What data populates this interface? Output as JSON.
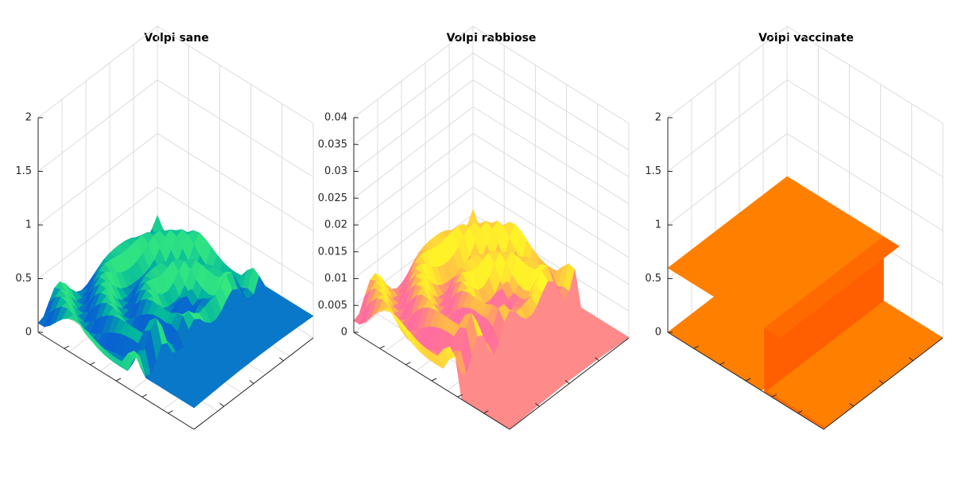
{
  "chart_data": [
    {
      "type": "surface3d",
      "title": "Volpi sane",
      "zlim": [
        0,
        2
      ],
      "zticks": [
        0,
        0.5,
        1,
        1.5,
        2
      ],
      "z_tick_labels": [
        "0",
        "0.5",
        "1",
        "1.5",
        "2"
      ],
      "grid": true,
      "colors": {
        "low": "#0a56d8",
        "mid": "#00b4a0",
        "high": "#3cf07a",
        "strip": "#0a78c8"
      },
      "surface": {
        "base_level": 0.2,
        "ripple_amplitude": 0.12,
        "ridge_peaks": [
          0.5,
          0.45
        ],
        "strip_level": 0.2
      }
    },
    {
      "type": "surface3d",
      "title": "Volpi rabbiose",
      "zlim": [
        0,
        0.04
      ],
      "zticks": [
        0,
        0.005,
        0.01,
        0.015,
        0.02,
        0.025,
        0.03,
        0.035,
        0.04
      ],
      "z_tick_labels": [
        "0",
        "0.005",
        "0.01",
        "0.015",
        "0.02",
        "0.025",
        "0.03",
        "0.035",
        "0.04"
      ],
      "grid": true,
      "colors": {
        "low": "#ff60b0",
        "mid": "#ffb050",
        "high": "#ffff20",
        "strip": "#ff8a8a"
      },
      "surface": {
        "base_level": 0.005,
        "ripple_amplitude": 0.003,
        "ridge_peaks": [
          0.01,
          0.009
        ],
        "strip_level": 0.0
      }
    },
    {
      "type": "surface3d",
      "title": "Volpi vaccinate",
      "zlim": [
        0,
        2
      ],
      "zticks": [
        0,
        0.5,
        1,
        1.5,
        2
      ],
      "z_tick_labels": [
        "0",
        "0.5",
        "1",
        "1.5",
        "2"
      ],
      "grid": true,
      "colors": {
        "top": "#ff7f00",
        "side": "#ff5f00",
        "front": "#ff6a00"
      },
      "surface": {
        "base_level": 0.0,
        "block_level": 0.6
      }
    }
  ]
}
